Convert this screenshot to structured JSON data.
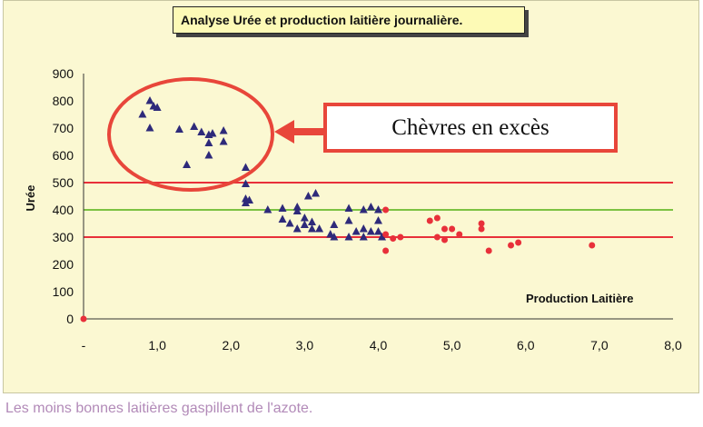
{
  "chart_data": {
    "type": "scatter",
    "title": "Analyse Urée et production laitière journalière.",
    "xlabel": "Production Laitière",
    "ylabel": "Urée",
    "xlim": [
      0,
      8
    ],
    "ylim": [
      0,
      900
    ],
    "x_ticks": [
      "-",
      "1,0",
      "2,0",
      "3,0",
      "4,0",
      "5,0",
      "6,0",
      "7,0",
      "8,0"
    ],
    "y_ticks": [
      "0",
      "100",
      "200",
      "300",
      "400",
      "500",
      "600",
      "700",
      "800",
      "900"
    ],
    "reference_lines": [
      {
        "y": 500,
        "color": "#e8303a"
      },
      {
        "y": 400,
        "color": "#7cc242"
      },
      {
        "y": 300,
        "color": "#e8303a"
      }
    ],
    "annotation": "Chèvres en excès",
    "series": [
      {
        "marker": "triangle",
        "color": "#2e2a7a",
        "points": [
          [
            0.8,
            750
          ],
          [
            0.9,
            800
          ],
          [
            0.95,
            780
          ],
          [
            0.9,
            700
          ],
          [
            1.0,
            775
          ],
          [
            1.3,
            695
          ],
          [
            1.5,
            705
          ],
          [
            1.6,
            685
          ],
          [
            1.7,
            675
          ],
          [
            1.75,
            680
          ],
          [
            1.9,
            690
          ],
          [
            1.9,
            650
          ],
          [
            1.7,
            645
          ],
          [
            1.7,
            600
          ],
          [
            1.4,
            565
          ],
          [
            2.2,
            555
          ],
          [
            2.2,
            495
          ],
          [
            2.2,
            440
          ],
          [
            2.25,
            435
          ],
          [
            2.2,
            425
          ],
          [
            2.5,
            400
          ],
          [
            2.7,
            405
          ],
          [
            2.7,
            365
          ],
          [
            2.8,
            350
          ],
          [
            2.9,
            395
          ],
          [
            2.9,
            410
          ],
          [
            2.9,
            330
          ],
          [
            3.0,
            370
          ],
          [
            3.0,
            345
          ],
          [
            3.05,
            450
          ],
          [
            3.1,
            355
          ],
          [
            3.15,
            460
          ],
          [
            3.1,
            330
          ],
          [
            3.2,
            330
          ],
          [
            3.35,
            310
          ],
          [
            3.4,
            345
          ],
          [
            3.4,
            300
          ],
          [
            3.6,
            405
          ],
          [
            3.6,
            360
          ],
          [
            3.6,
            300
          ],
          [
            3.7,
            320
          ],
          [
            3.8,
            300
          ],
          [
            3.8,
            330
          ],
          [
            3.8,
            400
          ],
          [
            3.9,
            410
          ],
          [
            3.9,
            320
          ],
          [
            4.0,
            400
          ],
          [
            4.0,
            360
          ],
          [
            4.0,
            320
          ],
          [
            4.05,
            300
          ]
        ]
      },
      {
        "marker": "circle",
        "color": "#e8303a",
        "points": [
          [
            0.0,
            0
          ],
          [
            4.1,
            400
          ],
          [
            4.1,
            310
          ],
          [
            4.1,
            250
          ],
          [
            4.2,
            295
          ],
          [
            4.3,
            300
          ],
          [
            4.7,
            360
          ],
          [
            4.8,
            370
          ],
          [
            4.8,
            300
          ],
          [
            4.9,
            330
          ],
          [
            4.9,
            290
          ],
          [
            5.0,
            330
          ],
          [
            5.1,
            310
          ],
          [
            5.4,
            350
          ],
          [
            5.4,
            330
          ],
          [
            5.5,
            250
          ],
          [
            5.8,
            270
          ],
          [
            5.9,
            280
          ],
          [
            6.9,
            270
          ]
        ]
      }
    ]
  },
  "caption": "Les moins bonnes laitières gaspillent de l'azote."
}
